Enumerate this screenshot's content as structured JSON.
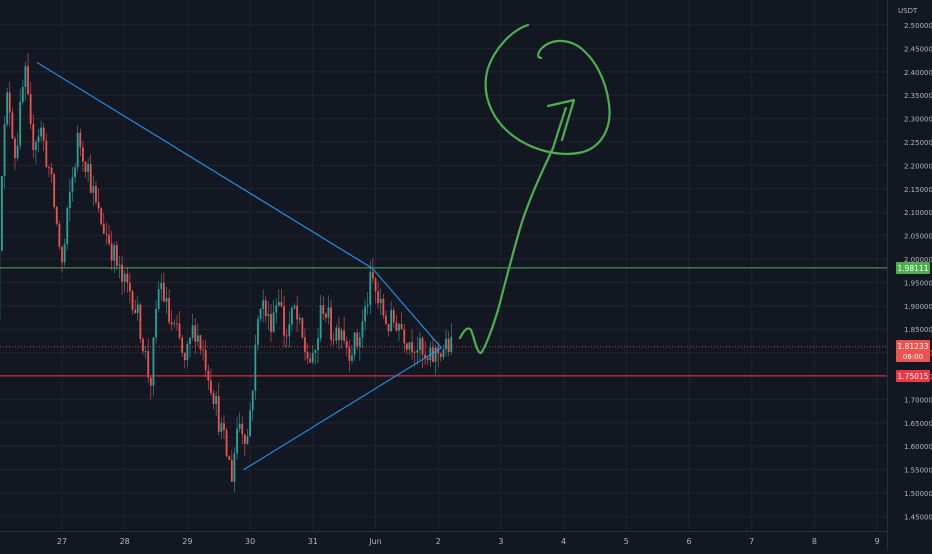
{
  "price_scale": {
    "currency": "USDT"
  },
  "badges": {
    "resistance": "1.98111",
    "current_price": "1.81233",
    "countdown": "06:00",
    "support": "1.75015"
  },
  "colors": {
    "background": "#131722",
    "grid": "#1f2330",
    "up_candle": "#26a69a",
    "down_candle": "#ef5350",
    "trendline": "#2196f3",
    "resistance_line": "#4caf50",
    "support_line": "#f23645",
    "drawing": "#4caf50",
    "axis_text": "#b2b5be"
  },
  "chart_data": {
    "type": "candlestick",
    "title": "",
    "xlabel": "",
    "ylabel": "USDT",
    "ylim": [
      1.42,
      2.53
    ],
    "y_ticks": [
      "2.50000",
      "2.45000",
      "2.40000",
      "2.35000",
      "2.30000",
      "2.25000",
      "2.20000",
      "2.15000",
      "2.10000",
      "2.05000",
      "2.00000",
      "1.95000",
      "1.90000",
      "1.85000",
      "1.80000",
      "1.75000",
      "1.70000",
      "1.65000",
      "1.60000",
      "1.55000",
      "1.50000",
      "1.45000"
    ],
    "x_ticks": [
      "27",
      "28",
      "29",
      "30",
      "31",
      "Jun",
      "2",
      "3",
      "4",
      "5",
      "6",
      "7",
      "8",
      "9"
    ],
    "horizontal_levels": [
      {
        "label": "resistance",
        "value": 1.98111
      },
      {
        "label": "current",
        "value": 1.81233
      },
      {
        "label": "support",
        "value": 1.75015
      }
    ],
    "trendlines": [
      {
        "name": "descending",
        "from": {
          "day": 26.6,
          "price": 2.42
        },
        "to": {
          "day": 31.95,
          "price": 1.98
        }
      },
      {
        "name": "descending-extension",
        "from": {
          "day": 31.95,
          "price": 1.98
        },
        "to": {
          "day": 33.05,
          "price": 1.81
        }
      },
      {
        "name": "ascending",
        "from": {
          "day": 29.9,
          "price": 1.55
        },
        "to": {
          "day": 33.05,
          "price": 1.81
        }
      }
    ],
    "price_path": [
      {
        "day": 26.0,
        "price": 1.87
      },
      {
        "day": 26.08,
        "price": 2.2
      },
      {
        "day": 26.18,
        "price": 2.36
      },
      {
        "day": 26.3,
        "price": 2.22
      },
      {
        "day": 26.45,
        "price": 2.4
      },
      {
        "day": 26.55,
        "price": 2.25
      },
      {
        "day": 26.7,
        "price": 2.28
      },
      {
        "day": 26.85,
        "price": 2.18
      },
      {
        "day": 26.95,
        "price": 2.08
      },
      {
        "day": 27.05,
        "price": 1.98
      },
      {
        "day": 27.15,
        "price": 2.12
      },
      {
        "day": 27.3,
        "price": 2.26
      },
      {
        "day": 27.45,
        "price": 2.2
      },
      {
        "day": 27.6,
        "price": 2.1
      },
      {
        "day": 27.8,
        "price": 2.04
      },
      {
        "day": 28.0,
        "price": 1.95
      },
      {
        "day": 28.15,
        "price": 1.93
      },
      {
        "day": 28.3,
        "price": 1.85
      },
      {
        "day": 28.45,
        "price": 1.73
      },
      {
        "day": 28.6,
        "price": 1.96
      },
      {
        "day": 28.75,
        "price": 1.87
      },
      {
        "day": 28.9,
        "price": 1.83
      },
      {
        "day": 29.0,
        "price": 1.77
      },
      {
        "day": 29.15,
        "price": 1.86
      },
      {
        "day": 29.3,
        "price": 1.8
      },
      {
        "day": 29.45,
        "price": 1.72
      },
      {
        "day": 29.6,
        "price": 1.62
      },
      {
        "day": 29.75,
        "price": 1.54
      },
      {
        "day": 29.85,
        "price": 1.66
      },
      {
        "day": 30.0,
        "price": 1.62
      },
      {
        "day": 30.1,
        "price": 1.76
      },
      {
        "day": 30.2,
        "price": 1.92
      },
      {
        "day": 30.35,
        "price": 1.86
      },
      {
        "day": 30.5,
        "price": 1.93
      },
      {
        "day": 30.6,
        "price": 1.83
      },
      {
        "day": 30.75,
        "price": 1.89
      },
      {
        "day": 30.9,
        "price": 1.81
      },
      {
        "day": 31.05,
        "price": 1.77
      },
      {
        "day": 31.2,
        "price": 1.91
      },
      {
        "day": 31.35,
        "price": 1.84
      },
      {
        "day": 31.5,
        "price": 1.86
      },
      {
        "day": 31.6,
        "price": 1.81
      },
      {
        "day": 31.75,
        "price": 1.82
      },
      {
        "day": 31.85,
        "price": 1.87
      },
      {
        "day": 31.98,
        "price": 1.96
      },
      {
        "day": 32.1,
        "price": 1.9
      },
      {
        "day": 32.25,
        "price": 1.86
      },
      {
        "day": 32.4,
        "price": 1.87
      },
      {
        "day": 32.55,
        "price": 1.83
      },
      {
        "day": 32.7,
        "price": 1.82
      },
      {
        "day": 32.85,
        "price": 1.77
      },
      {
        "day": 32.95,
        "price": 1.79
      },
      {
        "day": 33.1,
        "price": 1.81
      },
      {
        "day": 33.22,
        "price": 1.81233
      }
    ]
  }
}
